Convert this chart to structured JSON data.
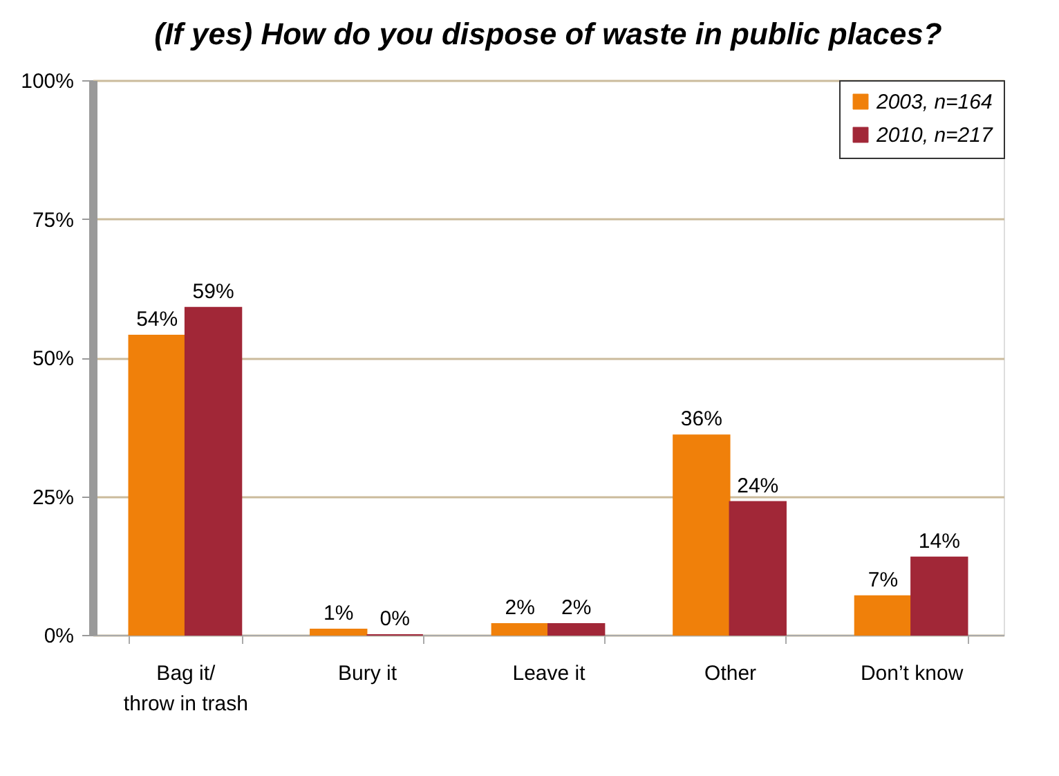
{
  "chart_data": {
    "type": "bar",
    "title": "(If yes) How do you dispose of waste in public places?",
    "categories": [
      "Bag it/\nthrow in trash",
      "Bury it",
      "Leave it",
      "Other",
      "Don’t know"
    ],
    "series": [
      {
        "name": "2003, n=164",
        "color": "#f0800a",
        "values": [
          54,
          1,
          2,
          36,
          7
        ],
        "value_labels": [
          "54%",
          "1%",
          "2%",
          "36%",
          "7%"
        ]
      },
      {
        "name": "2010, n=217",
        "color": "#a12737",
        "values": [
          59,
          0,
          2,
          24,
          14
        ],
        "value_labels": [
          "59%",
          "0%",
          "2%",
          "24%",
          "14%"
        ]
      }
    ],
    "ylim": [
      0,
      100
    ],
    "yticks": [
      {
        "value": 0,
        "label": "0%"
      },
      {
        "value": 25,
        "label": "25%"
      },
      {
        "value": 50,
        "label": "50%"
      },
      {
        "value": 75,
        "label": "75%"
      },
      {
        "value": 100,
        "label": "100%"
      }
    ],
    "grid": "y",
    "legend": "top right"
  }
}
